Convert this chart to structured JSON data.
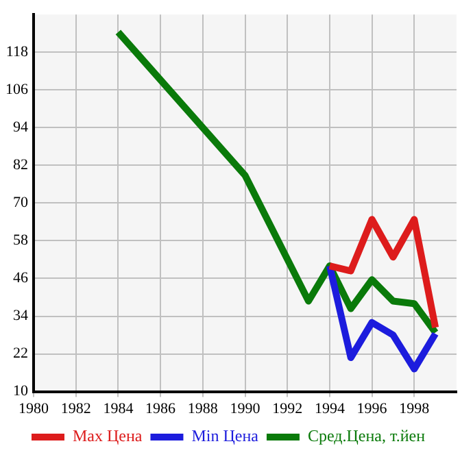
{
  "chart_data": {
    "type": "line",
    "xlim": [
      1980,
      2000
    ],
    "xticks": [
      1980,
      1982,
      1984,
      1986,
      1988,
      1990,
      1992,
      1994,
      1996,
      1998
    ],
    "ylim": [
      10,
      130
    ],
    "yticks": [
      10,
      22,
      34,
      46,
      58,
      70,
      82,
      94,
      106,
      118
    ],
    "grid": true,
    "legend": "bottom",
    "marker": "none",
    "line_style": "solid",
    "series": [
      {
        "name": "Max Цена",
        "color": "#dd1c1c",
        "x": [
          1994,
          1995,
          1996,
          1997,
          1998,
          1999
        ],
        "values": [
          50,
          48.4,
          64.8,
          52.8,
          64.8,
          30.4
        ]
      },
      {
        "name": "Min Цена",
        "color": "#1c1cdd",
        "x": [
          1994,
          1995,
          1996,
          1997,
          1998,
          1999
        ],
        "values": [
          50,
          20.8,
          32,
          28,
          17.2,
          28.4
        ]
      },
      {
        "name": "Сред.Цена, т.йен",
        "color": "#0a7a0a",
        "x": [
          1984,
          1990,
          1993,
          1994,
          1995,
          1996,
          1997,
          1998,
          1999
        ],
        "values": [
          124.4,
          78.8,
          38.8,
          50,
          36.4,
          45.6,
          38.8,
          38,
          28.8
        ]
      }
    ]
  }
}
